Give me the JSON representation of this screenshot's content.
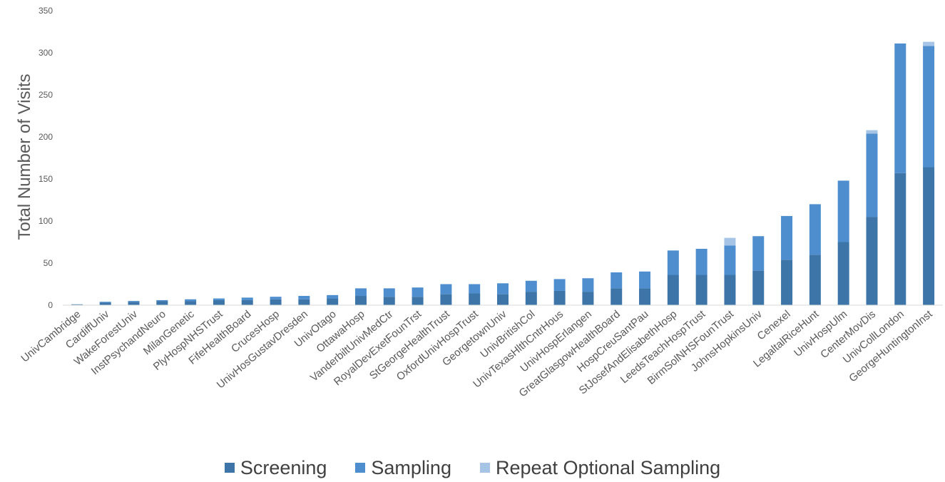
{
  "chart_data": {
    "type": "bar",
    "stacked": true,
    "title": "",
    "xlabel": "",
    "ylabel": "Total Number of Visits",
    "ylim": [
      0,
      350
    ],
    "yticks": [
      "0",
      "50",
      "100",
      "150",
      "200",
      "250",
      "300",
      "350"
    ],
    "grid": false,
    "legend_position": "bottom",
    "categories": [
      "UnivCambridge",
      "CardiffUniv",
      "WakeForestUniv",
      "InstPsychandNeuro",
      "MilanGenetic",
      "PlyHospNHSTrust",
      "FifeHealthBoard",
      "CrucesHosp",
      "UnivHosGustavDresden",
      "UnivOtago",
      "OttawaHosp",
      "VanderbiltUnivMedCtr",
      "RoyalDevExetFounTrst",
      "StGeorgeHealthTrust",
      "OxfordUnivHospTrust",
      "GeorgetownUniv",
      "UnivBritishCol",
      "UnivTexasHlthCntrHous",
      "UnivHospErlangen",
      "GreatGlasgowHealthBoard",
      "HospCreuSantPau",
      "StJosefAndElisabethHosp",
      "LeedsTeachHospTrust",
      "BirmSolNHSFounTrust",
      "JohnsHopkinsUniv",
      "Cenexel",
      "LegaltalRiceHunt",
      "UnivHospUlm",
      "CenterMovDis",
      "UnivCollLondon",
      "GeorgeHuntingtonInst"
    ],
    "series": [
      {
        "name": "Screening",
        "color": "#3e75a8",
        "values": [
          1,
          3,
          4,
          5,
          5,
          6,
          6,
          7,
          7,
          8,
          11,
          10,
          10,
          13,
          14,
          13,
          16,
          17,
          16,
          20,
          20,
          36,
          36,
          36,
          41,
          54,
          60,
          75,
          105,
          157,
          164
        ]
      },
      {
        "name": "Sampling",
        "color": "#4e8ecf",
        "values": [
          0,
          1,
          1,
          1,
          2,
          2,
          3,
          3,
          4,
          4,
          9,
          10,
          11,
          12,
          11,
          13,
          13,
          14,
          16,
          19,
          20,
          29,
          31,
          35,
          41,
          52,
          60,
          73,
          99,
          154,
          144
        ]
      },
      {
        "name": "Repeat Optional Sampling",
        "color": "#a6c4e6",
        "values": [
          0,
          0,
          0,
          0,
          0,
          0,
          0,
          0,
          0,
          0,
          0,
          0,
          0,
          0,
          0,
          0,
          0,
          0,
          0,
          0,
          0,
          0,
          0,
          9,
          0,
          0,
          0,
          0,
          4,
          0,
          5
        ]
      }
    ]
  }
}
